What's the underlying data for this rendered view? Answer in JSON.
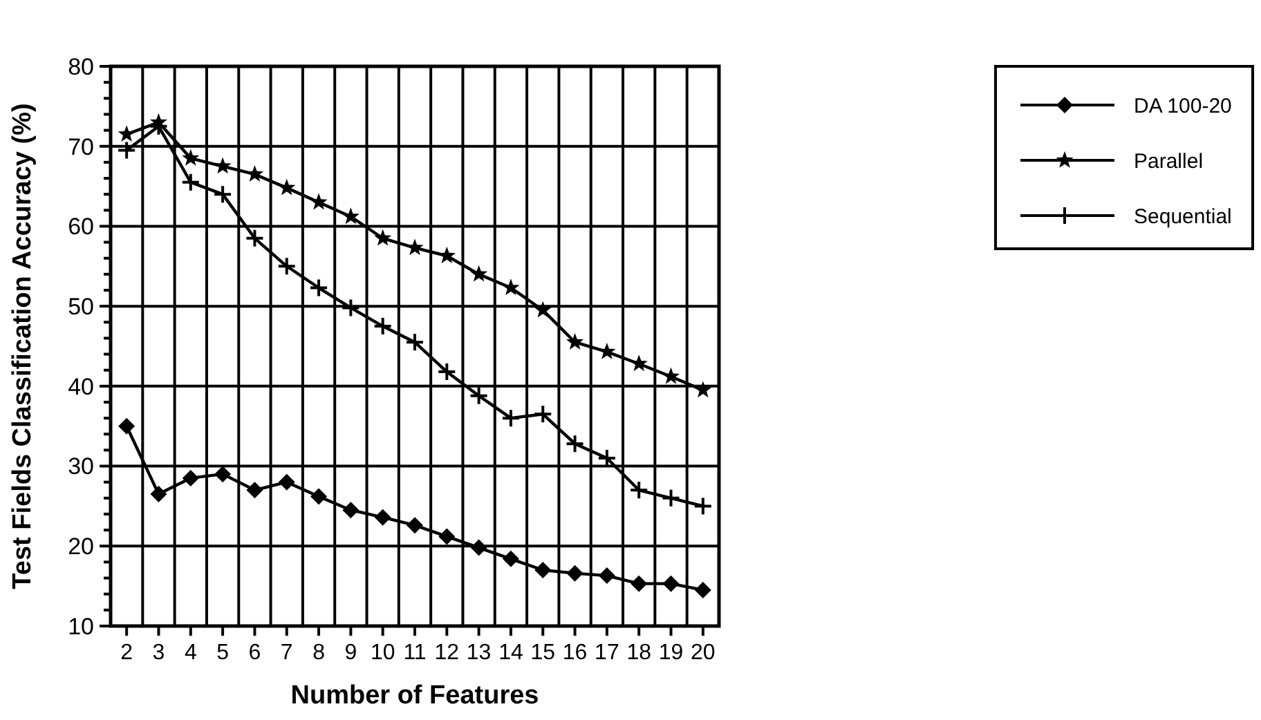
{
  "chart_data": {
    "type": "line",
    "xlabel": "Number of Features",
    "ylabel": "Test Fields Classification Accuracy (%)",
    "categories": [
      "2",
      "3",
      "4",
      "5",
      "6",
      "7",
      "8",
      "9",
      "10",
      "11",
      "12",
      "13",
      "14",
      "15",
      "16",
      "17",
      "18",
      "19",
      "20"
    ],
    "series": [
      {
        "name": "DA 100-20",
        "color": "#000000",
        "marker": "diamond",
        "values": [
          35,
          26.5,
          28.5,
          29,
          27,
          28,
          26.2,
          24.5,
          23.6,
          22.6,
          21.2,
          19.8,
          18.4,
          17,
          16.6,
          16.3,
          15.3,
          15.3,
          14.5
        ]
      },
      {
        "name": "Parallel",
        "color": "#000000",
        "marker": "star",
        "values": [
          71.5,
          73,
          68.5,
          67.5,
          66.5,
          64.8,
          63,
          61.2,
          58.5,
          57.3,
          56.3,
          54,
          52.3,
          49.5,
          45.5,
          44.3,
          42.8,
          41.2,
          39.5
        ]
      },
      {
        "name": "Sequential",
        "color": "#000000",
        "marker": "cross",
        "values": [
          69.5,
          72.5,
          65.5,
          64,
          58.5,
          55,
          52.3,
          49.8,
          47.5,
          45.5,
          41.8,
          38.8,
          36,
          36.5,
          32.8,
          31,
          27,
          26,
          25
        ]
      }
    ],
    "ylim": [
      10,
      80
    ],
    "yticks": [
      10,
      {
        "value": 12,
        "label": null
      },
      {
        "value": 14,
        "label": null
      },
      {
        "value": 16,
        "label": null
      },
      {
        "value": 18,
        "label": null
      },
      20,
      {
        "value": 22,
        "label": null
      },
      {
        "value": 24,
        "label": null
      },
      {
        "value": 26,
        "label": null
      },
      {
        "value": 28,
        "label": null
      },
      30,
      {
        "value": 32,
        "label": null
      },
      {
        "value": 34,
        "label": null
      },
      {
        "value": 36,
        "label": null
      },
      {
        "value": 38,
        "label": null
      },
      40,
      {
        "value": 42,
        "label": null
      },
      {
        "value": 44,
        "label": null
      },
      {
        "value": 46,
        "label": null
      },
      {
        "value": 48,
        "label": null
      },
      50,
      {
        "value": 52,
        "label": null
      },
      {
        "value": 54,
        "label": null
      },
      {
        "value": 56,
        "label": null
      },
      {
        "value": 58,
        "label": null
      },
      60,
      {
        "value": 62,
        "label": null
      },
      {
        "value": 64,
        "label": null
      },
      {
        "value": 66,
        "label": null
      },
      {
        "value": 68,
        "label": null
      },
      70,
      {
        "value": 72,
        "label": null
      },
      {
        "value": 74,
        "label": null
      },
      {
        "value": 76,
        "label": null
      },
      {
        "value": 78,
        "label": null
      },
      80
    ],
    "grid": true,
    "legend": "top right",
    "line_style": "solid"
  }
}
